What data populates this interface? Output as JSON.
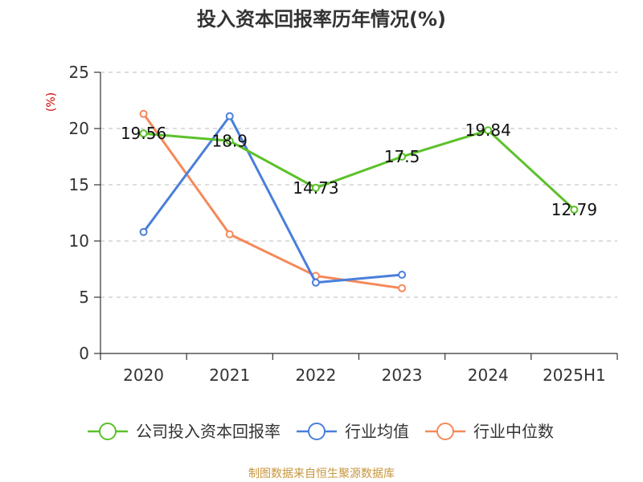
{
  "chart_data": {
    "type": "line",
    "title": "投入资本回报率历年情况(%)",
    "ylabel": "(%)",
    "xlabel": "",
    "categories": [
      "2020",
      "2021",
      "2022",
      "2023",
      "2024",
      "2025H1"
    ],
    "ylim": [
      0,
      25
    ],
    "yticks": [
      0,
      5,
      10,
      15,
      20,
      25
    ],
    "grid": true,
    "legend_position": "bottom",
    "series": [
      {
        "name": "公司投入资本回报率",
        "color": "#5cc12a",
        "values": [
          19.56,
          18.9,
          14.73,
          17.5,
          19.84,
          12.79
        ],
        "labels": [
          "19.56",
          "18.9",
          "14.73",
          "17.5",
          "19.84",
          "12.79"
        ]
      },
      {
        "name": "行业均值",
        "color": "#4a7fdb",
        "values": [
          10.8,
          21.1,
          6.3,
          7.0,
          null,
          null
        ]
      },
      {
        "name": "行业中位数",
        "color": "#f5895a",
        "values": [
          21.3,
          10.6,
          6.9,
          5.8,
          null,
          null
        ]
      }
    ]
  },
  "source": "制图数据来自恒生聚源数据库"
}
